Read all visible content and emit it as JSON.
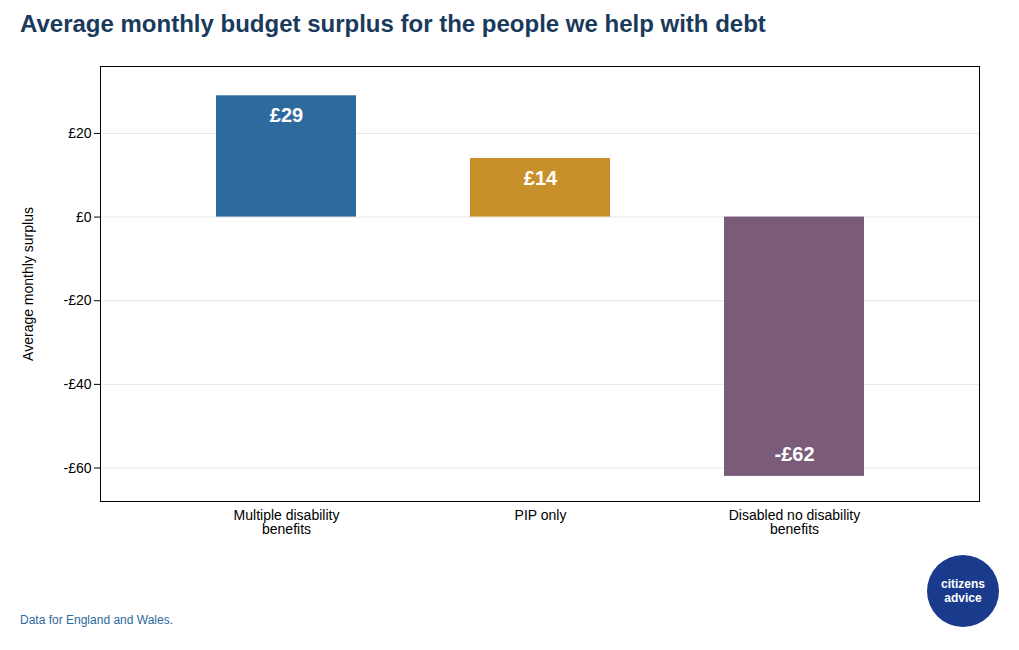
{
  "chart_data": {
    "type": "bar",
    "title": "Average monthly budget surplus for the people we help with debt",
    "categories": [
      "Multiple disability\nbenefits",
      "PIP only",
      "Disabled no disability\nbenefits"
    ],
    "values": [
      29,
      14,
      -62
    ],
    "value_labels": [
      "£29",
      "£14",
      "-£62"
    ],
    "data_labels": true,
    "colors": [
      "#2e6a9e",
      "#c8902a",
      "#7a5c7a"
    ],
    "ylabel": "Average monthly surplus",
    "ylim": [
      -68,
      36
    ],
    "yticks": [
      {
        "value": 20,
        "label": "£20"
      },
      {
        "value": 0,
        "label": "£0"
      },
      {
        "value": -20,
        "label": "-£20"
      },
      {
        "value": -40,
        "label": "-£40"
      },
      {
        "value": -60,
        "label": "-£60"
      }
    ],
    "grid": true,
    "caption": "Data for England and Wales.",
    "annotations": [
      {
        "text": "citizens\nadvice",
        "color": "#1a3a8c"
      }
    ]
  }
}
